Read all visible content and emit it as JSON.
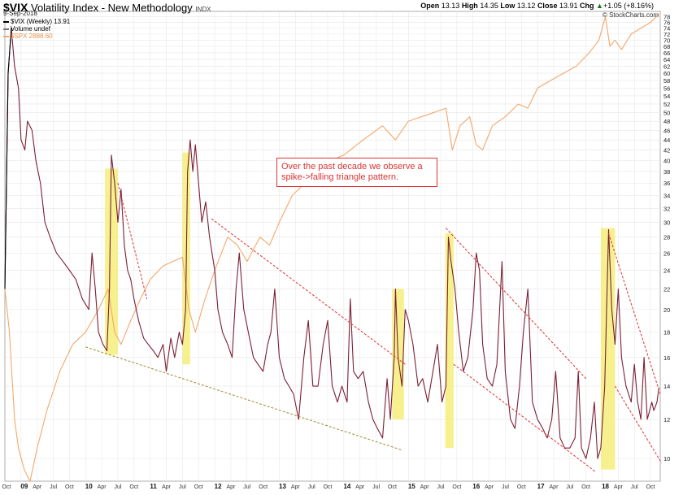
{
  "header": {
    "symbol": "$VIX",
    "name": "Volatility Index - New Methodology",
    "exchange": "INDX",
    "date": "5-Sep-2018",
    "open_label": "Open",
    "open": "13.13",
    "high_label": "High",
    "high": "14.35",
    "low_label": "Low",
    "low": "13.12",
    "close_label": "Close",
    "close": "13.91",
    "chg_label": "Chg",
    "chg": "+1.05 (+8.16%)",
    "chg_arrow": "▲",
    "credit": "© StockCharts.com"
  },
  "legend": [
    {
      "text": "$VIX (Weekly) 13.91",
      "color": "#000000"
    },
    {
      "text": "Volume undef",
      "color": "#777777"
    },
    {
      "text": "$SPX 2888.60",
      "color": "#f3a86b"
    }
  ],
  "annotation": {
    "text": "Over the past decade we observe a spike->falling triangle pattern."
  },
  "colors": {
    "vix": "#7b1f33",
    "spx": "#f3a86b",
    "highlight": "#f4ef7a",
    "trend_red": "#e03030",
    "trend_olive": "#a08a30",
    "grid": "#e6e6e6"
  },
  "chart_data": {
    "type": "line",
    "x_axis": {
      "start_year": 2008.75,
      "end_year": 2018.9,
      "year_labels": [
        {
          "year": 2009,
          "label": "09"
        },
        {
          "year": 2010,
          "label": "10"
        },
        {
          "year": 2011,
          "label": "11"
        },
        {
          "year": 2012,
          "label": "12"
        },
        {
          "year": 2013,
          "label": "13"
        },
        {
          "year": 2014,
          "label": "14"
        },
        {
          "year": 2015,
          "label": "15"
        },
        {
          "year": 2016,
          "label": "16"
        },
        {
          "year": 2017,
          "label": "17"
        },
        {
          "year": 2018,
          "label": "18"
        }
      ],
      "month_labels": [
        "Apr",
        "Jul",
        "Oct"
      ],
      "first_label": "Oct"
    },
    "y_axis": {
      "scale": "log",
      "ylim": [
        9,
        80
      ],
      "ticks": [
        10,
        12,
        14,
        16,
        18,
        20,
        22,
        24,
        26,
        28,
        30,
        32,
        34,
        36,
        38,
        40,
        42,
        44,
        46,
        48,
        50,
        52,
        54,
        56,
        58,
        60,
        62,
        64,
        66,
        68,
        70,
        72,
        74,
        76,
        78
      ],
      "side": "right"
    },
    "series": [
      {
        "name": "$VIX (Weekly) 13.91",
        "points": [
          [
            2008.75,
            22
          ],
          [
            2008.8,
            60
          ],
          [
            2008.85,
            74
          ],
          [
            2008.9,
            62
          ],
          [
            2008.96,
            56
          ],
          [
            2009.0,
            44
          ],
          [
            2009.06,
            42
          ],
          [
            2009.1,
            48
          ],
          [
            2009.17,
            46
          ],
          [
            2009.23,
            40
          ],
          [
            2009.3,
            36
          ],
          [
            2009.37,
            30
          ],
          [
            2009.45,
            28
          ],
          [
            2009.55,
            26
          ],
          [
            2009.65,
            25
          ],
          [
            2009.75,
            24
          ],
          [
            2009.85,
            23
          ],
          [
            2009.95,
            21
          ],
          [
            2010.05,
            20
          ],
          [
            2010.1,
            26
          ],
          [
            2010.15,
            22
          ],
          [
            2010.2,
            18
          ],
          [
            2010.27,
            17
          ],
          [
            2010.33,
            16.5
          ],
          [
            2010.37,
            22
          ],
          [
            2010.4,
            41
          ],
          [
            2010.45,
            36
          ],
          [
            2010.5,
            30
          ],
          [
            2010.55,
            35
          ],
          [
            2010.6,
            27
          ],
          [
            2010.65,
            24
          ],
          [
            2010.7,
            23
          ],
          [
            2010.75,
            21
          ],
          [
            2010.82,
            19
          ],
          [
            2010.9,
            17.5
          ],
          [
            2010.97,
            17
          ],
          [
            2011.05,
            16.5
          ],
          [
            2011.12,
            16
          ],
          [
            2011.2,
            17
          ],
          [
            2011.25,
            15
          ],
          [
            2011.32,
            17.5
          ],
          [
            2011.38,
            16
          ],
          [
            2011.45,
            18
          ],
          [
            2011.5,
            17
          ],
          [
            2011.55,
            20
          ],
          [
            2011.58,
            38
          ],
          [
            2011.62,
            44
          ],
          [
            2011.66,
            38
          ],
          [
            2011.7,
            43
          ],
          [
            2011.75,
            36
          ],
          [
            2011.8,
            30
          ],
          [
            2011.86,
            33
          ],
          [
            2011.92,
            28
          ],
          [
            2012.0,
            24
          ],
          [
            2012.05,
            20
          ],
          [
            2012.12,
            18
          ],
          [
            2012.2,
            17
          ],
          [
            2012.27,
            16
          ],
          [
            2012.33,
            22
          ],
          [
            2012.38,
            26
          ],
          [
            2012.45,
            20
          ],
          [
            2012.52,
            18
          ],
          [
            2012.6,
            16
          ],
          [
            2012.67,
            15.5
          ],
          [
            2012.75,
            15
          ],
          [
            2012.82,
            17
          ],
          [
            2012.87,
            18
          ],
          [
            2012.93,
            22
          ],
          [
            2013.0,
            16
          ],
          [
            2013.08,
            14.5
          ],
          [
            2013.15,
            14
          ],
          [
            2013.22,
            13.5
          ],
          [
            2013.3,
            12
          ],
          [
            2013.38,
            16
          ],
          [
            2013.45,
            19
          ],
          [
            2013.52,
            14
          ],
          [
            2013.6,
            14
          ],
          [
            2013.68,
            17
          ],
          [
            2013.75,
            19
          ],
          [
            2013.82,
            14
          ],
          [
            2013.9,
            13
          ],
          [
            2013.97,
            14
          ],
          [
            2014.05,
            13
          ],
          [
            2014.1,
            21
          ],
          [
            2014.15,
            15
          ],
          [
            2014.22,
            14.5
          ],
          [
            2014.3,
            15
          ],
          [
            2014.38,
            13
          ],
          [
            2014.45,
            12
          ],
          [
            2014.52,
            11.5
          ],
          [
            2014.6,
            11
          ],
          [
            2014.67,
            14.5
          ],
          [
            2014.72,
            12
          ],
          [
            2014.78,
            16
          ],
          [
            2014.8,
            22
          ],
          [
            2014.84,
            16
          ],
          [
            2014.9,
            14
          ],
          [
            2014.95,
            20
          ],
          [
            2015.0,
            19
          ],
          [
            2015.07,
            17
          ],
          [
            2015.15,
            14
          ],
          [
            2015.22,
            14.5
          ],
          [
            2015.3,
            13
          ],
          [
            2015.38,
            15
          ],
          [
            2015.45,
            17
          ],
          [
            2015.52,
            13
          ],
          [
            2015.58,
            14
          ],
          [
            2015.62,
            28
          ],
          [
            2015.66,
            25
          ],
          [
            2015.72,
            22
          ],
          [
            2015.78,
            18
          ],
          [
            2015.85,
            15
          ],
          [
            2015.92,
            16
          ],
          [
            2016.0,
            20
          ],
          [
            2016.05,
            26
          ],
          [
            2016.1,
            24
          ],
          [
            2016.15,
            17
          ],
          [
            2016.22,
            14.5
          ],
          [
            2016.3,
            14
          ],
          [
            2016.37,
            15.5
          ],
          [
            2016.45,
            25
          ],
          [
            2016.5,
            15
          ],
          [
            2016.58,
            12
          ],
          [
            2016.65,
            11.5
          ],
          [
            2016.72,
            14
          ],
          [
            2016.78,
            18
          ],
          [
            2016.85,
            22
          ],
          [
            2016.92,
            13
          ],
          [
            2017.0,
            12
          ],
          [
            2017.08,
            11.5
          ],
          [
            2017.15,
            11
          ],
          [
            2017.22,
            12
          ],
          [
            2017.28,
            15
          ],
          [
            2017.35,
            11
          ],
          [
            2017.42,
            10.5
          ],
          [
            2017.5,
            10.5
          ],
          [
            2017.58,
            11
          ],
          [
            2017.63,
            15
          ],
          [
            2017.68,
            10.5
          ],
          [
            2017.75,
            10
          ],
          [
            2017.82,
            11
          ],
          [
            2017.88,
            13
          ],
          [
            2017.93,
            10
          ],
          [
            2017.98,
            10.5
          ],
          [
            2018.04,
            14
          ],
          [
            2018.1,
            29
          ],
          [
            2018.15,
            20
          ],
          [
            2018.2,
            17
          ],
          [
            2018.25,
            22
          ],
          [
            2018.3,
            16
          ],
          [
            2018.37,
            14
          ],
          [
            2018.45,
            13
          ],
          [
            2018.5,
            15.5
          ],
          [
            2018.55,
            13
          ],
          [
            2018.6,
            12
          ],
          [
            2018.65,
            16
          ],
          [
            2018.7,
            12
          ],
          [
            2018.77,
            13
          ],
          [
            2018.8,
            12.5
          ],
          [
            2018.85,
            13
          ],
          [
            2018.88,
            13.91
          ]
        ]
      },
      {
        "name": "$SPX 2888.60",
        "points": [
          [
            2008.75,
            22
          ],
          [
            2008.82,
            18
          ],
          [
            2008.9,
            12
          ],
          [
            2008.96,
            10.5
          ],
          [
            2009.05,
            9.5
          ],
          [
            2009.14,
            9.0
          ],
          [
            2009.25,
            10.5
          ],
          [
            2009.4,
            12.5
          ],
          [
            2009.6,
            15
          ],
          [
            2009.8,
            17
          ],
          [
            2010.0,
            18
          ],
          [
            2010.2,
            20
          ],
          [
            2010.35,
            22
          ],
          [
            2010.45,
            18
          ],
          [
            2010.55,
            17
          ],
          [
            2010.7,
            19
          ],
          [
            2010.85,
            21
          ],
          [
            2011.0,
            23
          ],
          [
            2011.2,
            24.5
          ],
          [
            2011.35,
            25
          ],
          [
            2011.5,
            25.5
          ],
          [
            2011.6,
            20
          ],
          [
            2011.7,
            18
          ],
          [
            2011.85,
            21
          ],
          [
            2012.0,
            24
          ],
          [
            2012.2,
            28
          ],
          [
            2012.35,
            27
          ],
          [
            2012.5,
            25
          ],
          [
            2012.7,
            28
          ],
          [
            2012.85,
            27
          ],
          [
            2013.0,
            30
          ],
          [
            2013.2,
            34
          ],
          [
            2013.4,
            36
          ],
          [
            2013.6,
            37
          ],
          [
            2013.8,
            40
          ],
          [
            2014.0,
            41
          ],
          [
            2014.2,
            43
          ],
          [
            2014.4,
            45
          ],
          [
            2014.6,
            47
          ],
          [
            2014.8,
            44
          ],
          [
            2015.0,
            48
          ],
          [
            2015.2,
            49
          ],
          [
            2015.4,
            50
          ],
          [
            2015.58,
            51
          ],
          [
            2015.68,
            42
          ],
          [
            2015.8,
            47
          ],
          [
            2015.95,
            49
          ],
          [
            2016.05,
            43
          ],
          [
            2016.15,
            42
          ],
          [
            2016.3,
            47
          ],
          [
            2016.5,
            49
          ],
          [
            2016.7,
            52
          ],
          [
            2016.85,
            51
          ],
          [
            2017.0,
            56
          ],
          [
            2017.2,
            58
          ],
          [
            2017.4,
            60
          ],
          [
            2017.6,
            62
          ],
          [
            2017.8,
            66
          ],
          [
            2017.95,
            70
          ],
          [
            2018.05,
            78
          ],
          [
            2018.12,
            68
          ],
          [
            2018.2,
            70
          ],
          [
            2018.3,
            67
          ],
          [
            2018.45,
            72
          ],
          [
            2018.6,
            74
          ],
          [
            2018.75,
            76
          ],
          [
            2018.88,
            79
          ]
        ]
      }
    ],
    "highlights": [
      {
        "x0": 2010.3,
        "x1": 2010.5,
        "y0": 16.2,
        "y1": 38.5
      },
      {
        "x0": 2011.5,
        "x1": 2011.62,
        "y0": 15.5,
        "y1": 41.5
      },
      {
        "x0": 2014.75,
        "x1": 2014.93,
        "y0": 12,
        "y1": 22
      },
      {
        "x0": 2015.57,
        "x1": 2015.7,
        "y0": 10.5,
        "y1": 28.5
      },
      {
        "x0": 2017.98,
        "x1": 2018.2,
        "y0": 9.5,
        "y1": 29.2
      }
    ],
    "trendlines": [
      {
        "x0": 2010.5,
        "y0": 36,
        "x1": 2010.95,
        "y1": 21,
        "style": "red"
      },
      {
        "x0": 2011.95,
        "y0": 30.5,
        "x1": 2014.95,
        "y1": 15.5,
        "style": "red"
      },
      {
        "x0": 2015.58,
        "y0": 29.2,
        "x1": 2017.75,
        "y1": 14.5,
        "style": "red"
      },
      {
        "x0": 2015.7,
        "y0": 15.5,
        "x1": 2017.9,
        "y1": 9.4,
        "style": "red"
      },
      {
        "x0": 2018.1,
        "y0": 28.5,
        "x1": 2018.9,
        "y1": 13.5,
        "style": "red"
      },
      {
        "x0": 2018.2,
        "y0": 14,
        "x1": 2018.92,
        "y1": 9.8,
        "style": "red"
      },
      {
        "x0": 2010.0,
        "y0": 16.8,
        "x1": 2014.9,
        "y1": 10.4,
        "style": "olive"
      }
    ]
  }
}
